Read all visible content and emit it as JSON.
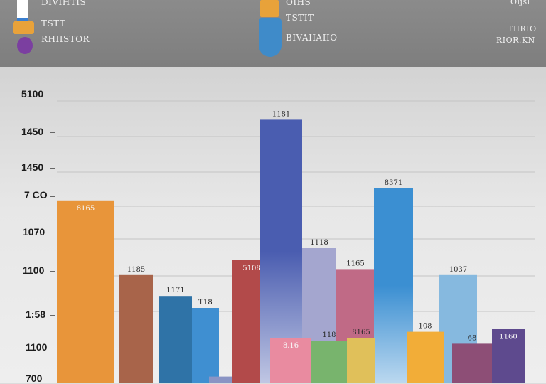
{
  "legend": {
    "left": {
      "lines": [
        "DIVIHTIS",
        "TSTT",
        "RHIISTOR"
      ],
      "swatch_colors": [
        "#3a7fd0",
        "#e8a23a",
        "#7b3fa0"
      ]
    },
    "middle": {
      "lines": [
        "OIHS",
        "TSTIT",
        "BIVAIIAIIO"
      ],
      "swatch_colors": [
        "#e8a23a",
        "#3f8bc9"
      ]
    },
    "right": {
      "lines": [
        "Oijsl",
        "TIIRIO",
        "RIOR.KN"
      ]
    }
  },
  "chart_data": {
    "type": "bar",
    "title": "",
    "xlabel": "",
    "ylabel": "",
    "y_tick_labels": [
      "5100",
      "1450",
      "1450",
      "7 CO",
      "1070",
      "1100",
      "1:58",
      "1100",
      "700"
    ],
    "ylim": [
      0,
      100
    ],
    "grid": true,
    "series": [
      {
        "name": "orange",
        "value": 61,
        "color": "#e8953a",
        "label": "8165"
      },
      {
        "name": "brown",
        "value": 36,
        "color": "#a8644a",
        "label": "1185"
      },
      {
        "name": "dark-blue",
        "value": 29,
        "color": "#2f73a7",
        "label": "1171"
      },
      {
        "name": "blue",
        "value": 25,
        "color": "#3f8fd1",
        "label": "T18"
      },
      {
        "name": "lavender-base",
        "value": 2,
        "color": "#8a94c4",
        "label": ""
      },
      {
        "name": "red",
        "value": 41,
        "color": "#b24a4a",
        "label": "5108"
      },
      {
        "name": "navy",
        "value": 88,
        "color": "#4a5db0",
        "label": "1181"
      },
      {
        "name": "lavender",
        "value": 45,
        "color": "#a4a6cf",
        "label": "1118"
      },
      {
        "name": "rose",
        "value": 38,
        "color": "#c06a86",
        "label": "1165"
      },
      {
        "name": "sky",
        "value": 65,
        "color": "#3b8fd2",
        "label": "8371"
      },
      {
        "name": "light-blue",
        "value": 36,
        "color": "#86b9df",
        "label": "1037"
      },
      {
        "name": "pink",
        "value": 15,
        "color": "#e98ba0",
        "label": "8.16"
      },
      {
        "name": "green",
        "value": 14,
        "color": "#78b46d",
        "label": "118"
      },
      {
        "name": "yellow",
        "value": 15,
        "color": "#e0c05a",
        "label": "8165"
      },
      {
        "name": "amber",
        "value": 17,
        "color": "#f2ad38",
        "label": "108"
      },
      {
        "name": "plum",
        "value": 13,
        "color": "#8d4e76",
        "label": "68"
      },
      {
        "name": "purple",
        "value": 18,
        "color": "#5e4a8e",
        "label": "1160"
      }
    ]
  }
}
